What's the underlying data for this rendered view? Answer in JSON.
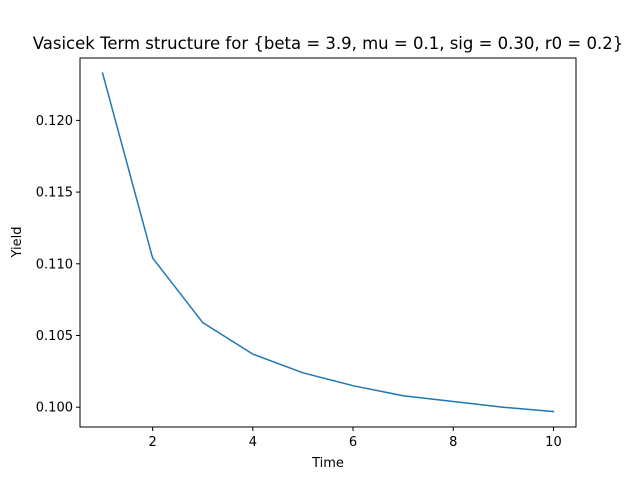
{
  "chart_data": {
    "type": "line",
    "title": "Vasicek Term structure for {beta = 3.9, mu = 0.1, sig = 0.30, r0 = 0.2}",
    "xlabel": "Time",
    "ylabel": "Yield",
    "xlim": [
      0.55,
      10.45
    ],
    "ylim": [
      0.09862,
      0.12435
    ],
    "xticks": [
      2,
      4,
      6,
      8,
      10
    ],
    "xtick_labels": [
      "2",
      "4",
      "6",
      "8",
      "10"
    ],
    "yticks": [
      0.1,
      0.105,
      0.11,
      0.115,
      0.12
    ],
    "ytick_labels": [
      "0.100",
      "0.105",
      "0.110",
      "0.115",
      "0.120"
    ],
    "grid": false,
    "legend": "none",
    "series": [
      {
        "color": "#1f77b4",
        "x": [
          1,
          2,
          3,
          4,
          5,
          6,
          7,
          8,
          9,
          10
        ],
        "y": [
          0.1233,
          0.1104,
          0.1059,
          0.1037,
          0.1024,
          0.1015,
          0.1008,
          0.1004,
          0.1,
          0.0997
        ]
      }
    ]
  }
}
